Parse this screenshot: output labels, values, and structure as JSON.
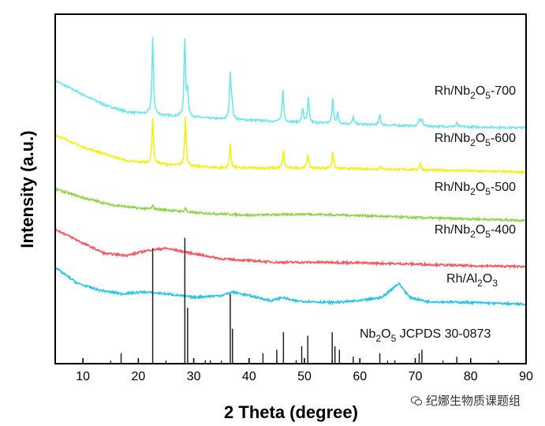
{
  "chart_data": {
    "type": "line",
    "title": "",
    "xlabel": "2 Theta (degree)",
    "ylabel": "Intensity (a.u.)",
    "xlim": [
      5,
      90
    ],
    "xticks": [
      10,
      20,
      30,
      40,
      50,
      60,
      70,
      80,
      90
    ],
    "yticks": [],
    "grid": false,
    "series": [
      {
        "name": "Rh/Nb2O5-700",
        "label": {
          "prefix": "Rh/Nb",
          "sub1": "2",
          "mid": "O",
          "sub2": "5",
          "suffix": "-700"
        },
        "color": "#6fe5f0",
        "baseline": [
          [
            5,
            0.81
          ],
          [
            10,
            0.77
          ],
          [
            14,
            0.74
          ],
          [
            18,
            0.72
          ],
          [
            25,
            0.71
          ],
          [
            35,
            0.7
          ],
          [
            50,
            0.69
          ],
          [
            70,
            0.68
          ],
          [
            90,
            0.675
          ]
        ],
        "peaks": [
          [
            22.6,
            0.22
          ],
          [
            28.4,
            0.22
          ],
          [
            28.9,
            0.07
          ],
          [
            36.6,
            0.13
          ],
          [
            36.9,
            0.04
          ],
          [
            46.1,
            0.09
          ],
          [
            49.7,
            0.04
          ],
          [
            50.7,
            0.07
          ],
          [
            55.1,
            0.07
          ],
          [
            56.0,
            0.03
          ],
          [
            58.8,
            0.02
          ],
          [
            63.6,
            0.03
          ],
          [
            70.7,
            0.02
          ],
          [
            71.2,
            0.02
          ],
          [
            77.5,
            0.01
          ]
        ]
      },
      {
        "name": "Rh/Nb2O5-600",
        "label": {
          "prefix": "Rh/Nb",
          "sub1": "2",
          "mid": "O",
          "sub2": "5",
          "suffix": "-600"
        },
        "color": "#f3f013",
        "baseline": [
          [
            5,
            0.655
          ],
          [
            10,
            0.62
          ],
          [
            14,
            0.6
          ],
          [
            18,
            0.58
          ],
          [
            25,
            0.57
          ],
          [
            35,
            0.56
          ],
          [
            50,
            0.56
          ],
          [
            70,
            0.555
          ],
          [
            90,
            0.548
          ]
        ],
        "peaks": [
          [
            22.6,
            0.13
          ],
          [
            28.5,
            0.14
          ],
          [
            36.6,
            0.07
          ],
          [
            46.2,
            0.05
          ],
          [
            50.6,
            0.04
          ],
          [
            55.1,
            0.05
          ],
          [
            63.7,
            0.01
          ],
          [
            70.9,
            0.02
          ]
        ]
      },
      {
        "name": "Rh/Nb2O5-500",
        "label": {
          "prefix": "Rh/Nb",
          "sub1": "2",
          "mid": "O",
          "sub2": "5",
          "suffix": "-500"
        },
        "color": "#8bd34a",
        "baseline": [
          [
            5,
            0.5
          ],
          [
            10,
            0.475
          ],
          [
            15,
            0.455
          ],
          [
            20,
            0.445
          ],
          [
            25,
            0.44
          ],
          [
            30,
            0.432
          ],
          [
            40,
            0.425
          ],
          [
            50,
            0.428
          ],
          [
            60,
            0.424
          ],
          [
            70,
            0.418
          ],
          [
            80,
            0.414
          ],
          [
            90,
            0.41
          ]
        ],
        "peaks": [
          [
            22.6,
            0.01
          ],
          [
            28.5,
            0.012
          ]
        ]
      },
      {
        "name": "Rh/Nb2O5-400",
        "label": {
          "prefix": "Rh/Nb",
          "sub1": "2",
          "mid": "O",
          "sub2": "5",
          "suffix": "-400"
        },
        "color": "#f2575a",
        "baseline": [
          [
            5,
            0.385
          ],
          [
            10,
            0.345
          ],
          [
            14,
            0.315
          ],
          [
            18,
            0.31
          ],
          [
            22,
            0.325
          ],
          [
            25,
            0.33
          ],
          [
            30,
            0.315
          ],
          [
            35,
            0.3
          ],
          [
            45,
            0.29
          ],
          [
            55,
            0.29
          ],
          [
            70,
            0.285
          ],
          [
            80,
            0.28
          ],
          [
            90,
            0.278
          ]
        ],
        "peaks": []
      },
      {
        "name": "Rh/Al2O3",
        "label": {
          "prefix": "Rh/Al",
          "sub1": "2",
          "mid": "O",
          "sub2": "3",
          "suffix": ""
        },
        "color": "#25c4e6",
        "baseline": [
          [
            5,
            0.275
          ],
          [
            9,
            0.23
          ],
          [
            13,
            0.21
          ],
          [
            17,
            0.2
          ],
          [
            21,
            0.205
          ],
          [
            25,
            0.2
          ],
          [
            30,
            0.19
          ],
          [
            35,
            0.195
          ],
          [
            37,
            0.205
          ],
          [
            40,
            0.195
          ],
          [
            44,
            0.18
          ],
          [
            46,
            0.19
          ],
          [
            48,
            0.18
          ],
          [
            55,
            0.175
          ],
          [
            60,
            0.18
          ],
          [
            64,
            0.19
          ],
          [
            67,
            0.23
          ],
          [
            69,
            0.19
          ],
          [
            72,
            0.178
          ],
          [
            80,
            0.175
          ],
          [
            90,
            0.17
          ]
        ],
        "peaks": []
      }
    ],
    "reference": {
      "label": {
        "prefix": "Nb",
        "sub1": "2",
        "mid": "O",
        "sub2": "5",
        "suffix": "  JCPDS 30-0873"
      },
      "color": "#222222",
      "sticks": [
        [
          16.9,
          0.03
        ],
        [
          22.6,
          0.33
        ],
        [
          28.4,
          0.36
        ],
        [
          28.9,
          0.16
        ],
        [
          32.1,
          0.01
        ],
        [
          33.0,
          0.01
        ],
        [
          36.6,
          0.2
        ],
        [
          37.0,
          0.1
        ],
        [
          42.5,
          0.03
        ],
        [
          45.0,
          0.04
        ],
        [
          46.2,
          0.09
        ],
        [
          48.5,
          0.01
        ],
        [
          49.5,
          0.05
        ],
        [
          50.6,
          0.08
        ],
        [
          55.0,
          0.09
        ],
        [
          55.5,
          0.05
        ],
        [
          56.3,
          0.04
        ],
        [
          58.8,
          0.02
        ],
        [
          63.6,
          0.03
        ],
        [
          66.3,
          0.01
        ],
        [
          70.7,
          0.03
        ],
        [
          71.2,
          0.04
        ],
        [
          77.5,
          0.02
        ]
      ]
    }
  },
  "watermark": {
    "text": "纪娜生物质课题组",
    "icon": "wechat-icon"
  }
}
